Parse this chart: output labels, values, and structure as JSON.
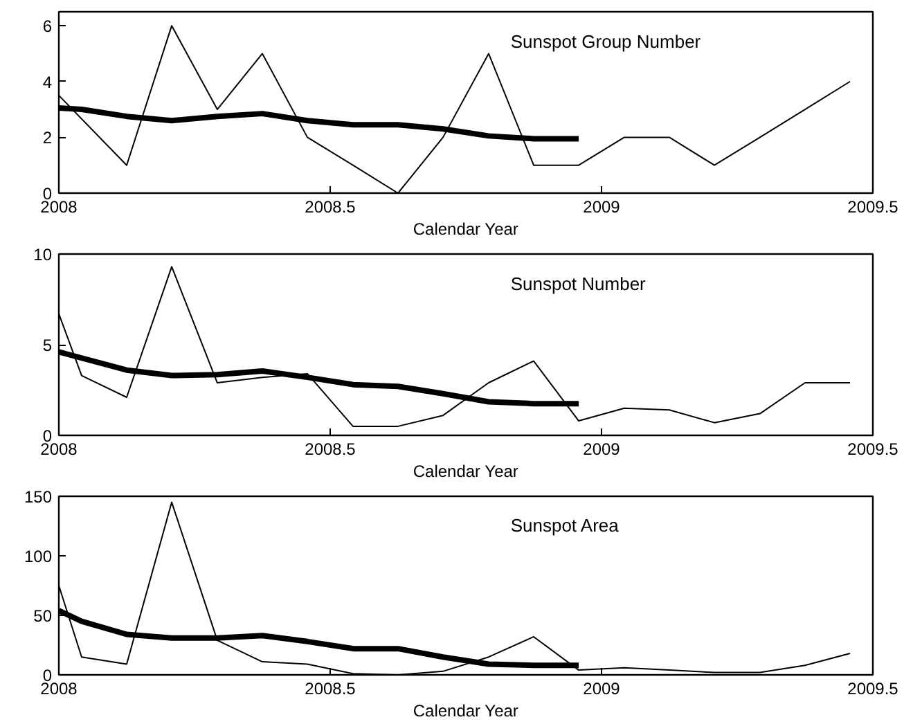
{
  "chart_data": [
    {
      "type": "line",
      "xlabel": "Calendar Year",
      "annotations": [
        "Sunspot Group Number"
      ],
      "xlim": [
        2008,
        2009.5
      ],
      "xticks": [
        2008,
        2008.5,
        2009,
        2009.5
      ],
      "ylim": [
        0,
        6.5
      ],
      "yticks": [
        0,
        2,
        4,
        6
      ],
      "series": [
        {
          "color": "#000000",
          "x": [
            2008.0,
            2008.125,
            2008.208,
            2008.292,
            2008.375,
            2008.458,
            2008.542,
            2008.625,
            2008.708,
            2008.792,
            2008.875,
            2008.958,
            2009.042,
            2009.125,
            2009.208,
            2009.292,
            2009.375,
            2009.458
          ],
          "values": [
            3.5,
            1,
            6,
            3,
            5,
            2,
            1,
            0,
            2,
            5,
            1,
            1,
            2,
            2,
            1,
            2,
            3,
            4
          ]
        },
        {
          "color": "#000000",
          "x": [
            2008.0,
            2008.042,
            2008.125,
            2008.208,
            2008.292,
            2008.375,
            2008.458,
            2008.542,
            2008.625,
            2008.708,
            2008.792,
            2008.875,
            2008.958
          ],
          "values": [
            3.05,
            3.0,
            2.75,
            2.6,
            2.75,
            2.85,
            2.6,
            2.45,
            2.45,
            2.3,
            2.05,
            1.95,
            1.95
          ]
        }
      ]
    },
    {
      "type": "line",
      "xlabel": "Calendar Year",
      "annotations": [
        "Sunspot Number"
      ],
      "xlim": [
        2008,
        2009.5
      ],
      "xticks": [
        2008,
        2008.5,
        2009,
        2009.5
      ],
      "ylim": [
        0,
        10
      ],
      "yticks": [
        0,
        5,
        10
      ],
      "series": [
        {
          "color": "#000000",
          "x": [
            2008.0,
            2008.042,
            2008.125,
            2008.208,
            2008.292,
            2008.375,
            2008.458,
            2008.542,
            2008.625,
            2008.708,
            2008.792,
            2008.875,
            2008.958,
            2009.042,
            2009.125,
            2009.208,
            2009.292,
            2009.375,
            2009.458
          ],
          "values": [
            6.7,
            3.3,
            2.1,
            9.3,
            2.9,
            3.2,
            3.4,
            0.5,
            0.5,
            1.1,
            2.9,
            4.1,
            0.8,
            1.5,
            1.4,
            0.7,
            1.2,
            2.9,
            2.9
          ]
        },
        {
          "color": "#000000",
          "x": [
            2008.0,
            2008.125,
            2008.208,
            2008.292,
            2008.375,
            2008.458,
            2008.542,
            2008.625,
            2008.708,
            2008.792,
            2008.875,
            2008.958
          ],
          "values": [
            4.6,
            3.6,
            3.3,
            3.35,
            3.55,
            3.2,
            2.8,
            2.7,
            2.3,
            1.85,
            1.75,
            1.75
          ]
        }
      ]
    },
    {
      "type": "line",
      "xlabel": "Calendar Year",
      "annotations": [
        "Sunspot Area"
      ],
      "xlim": [
        2008,
        2009.5
      ],
      "xticks": [
        2008,
        2008.5,
        2009,
        2009.5
      ],
      "ylim": [
        0,
        150
      ],
      "yticks": [
        0,
        50,
        100,
        150
      ],
      "series": [
        {
          "color": "#000000",
          "x": [
            2008.0,
            2008.042,
            2008.125,
            2008.208,
            2008.292,
            2008.375,
            2008.458,
            2008.542,
            2008.625,
            2008.708,
            2008.792,
            2008.875,
            2008.958,
            2009.042,
            2009.125,
            2009.208,
            2009.292,
            2009.375,
            2009.458
          ],
          "values": [
            75,
            15,
            9,
            145,
            29,
            11,
            9,
            1,
            0,
            3,
            15,
            32,
            4,
            6,
            4,
            2,
            2,
            8,
            18
          ]
        },
        {
          "color": "#000000",
          "x": [
            2008.0,
            2008.042,
            2008.125,
            2008.208,
            2008.292,
            2008.375,
            2008.458,
            2008.542,
            2008.625,
            2008.708,
            2008.792,
            2008.875,
            2008.958
          ],
          "values": [
            54,
            45,
            34,
            31,
            31,
            33,
            28,
            22,
            22,
            15,
            9,
            8,
            8
          ]
        }
      ]
    }
  ]
}
